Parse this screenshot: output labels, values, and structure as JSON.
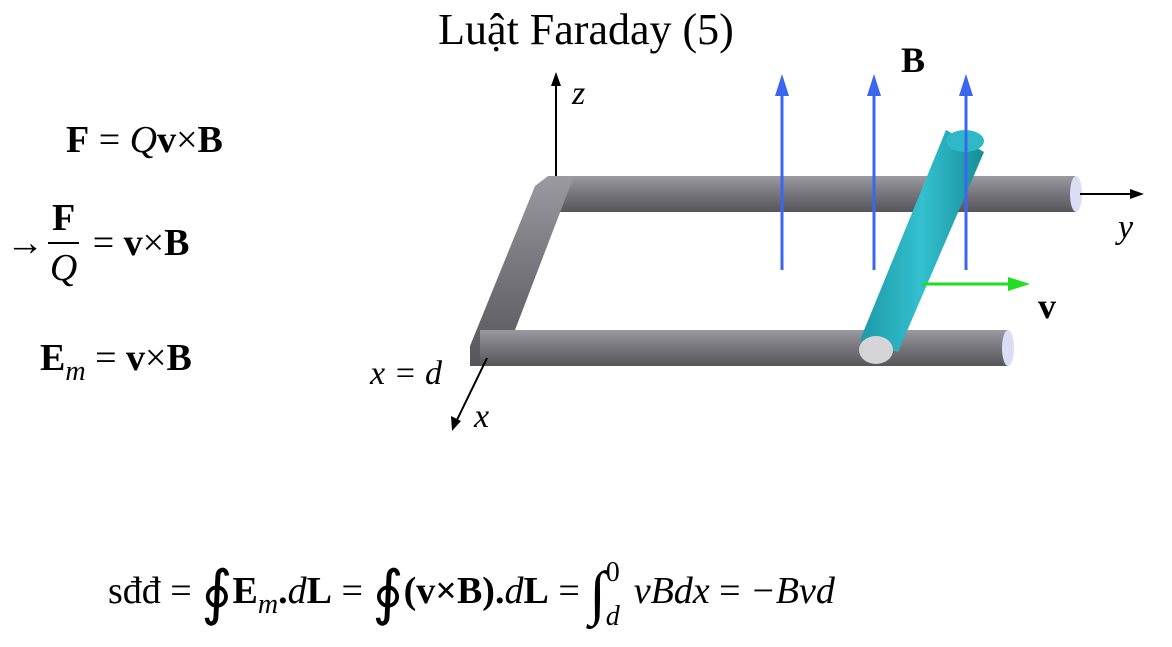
{
  "title": "Luật Faraday (5)",
  "equations": {
    "force_F": "F",
    "force_eq": " = ",
    "force_Q": "Q",
    "force_v": "v",
    "force_times": "×",
    "force_B": "B",
    "arrow": "→",
    "frac_num": "F",
    "frac_den": "Q",
    "ratio_rhs_eq": " = ",
    "ratio_v": "v",
    "ratio_times": "×",
    "ratio_B": "B",
    "em_E": "E",
    "em_sub": "m",
    "em_eq": " = ",
    "em_v": "v",
    "em_times": "×",
    "em_B": "B"
  },
  "emf": {
    "lhs": "sđđ",
    "eq1": " = ",
    "oint1": "∮",
    "E": "E",
    "E_sub": "m",
    "dot1": ".",
    "d1": "d",
    "L1": "L",
    "eq2": " = ",
    "oint2": "∮",
    "paren": "(v×B)",
    "dot2": ".",
    "d2": "d",
    "L2": "L",
    "eq3": " = ",
    "int": "∫",
    "upper": "0",
    "lower": "d",
    "integrand": "vBdx",
    "eq4": " = ",
    "result": "−Bvd"
  },
  "diagram_labels": {
    "z": "z",
    "y": "y",
    "x": "x",
    "x_eq_d": "x = d",
    "B": "B",
    "v": "v"
  },
  "colors": {
    "rail": "#7f7f85",
    "rod": "#2ab0c0",
    "field": "#3a66f0",
    "velocity": "#22dd22",
    "axis": "#000000"
  }
}
